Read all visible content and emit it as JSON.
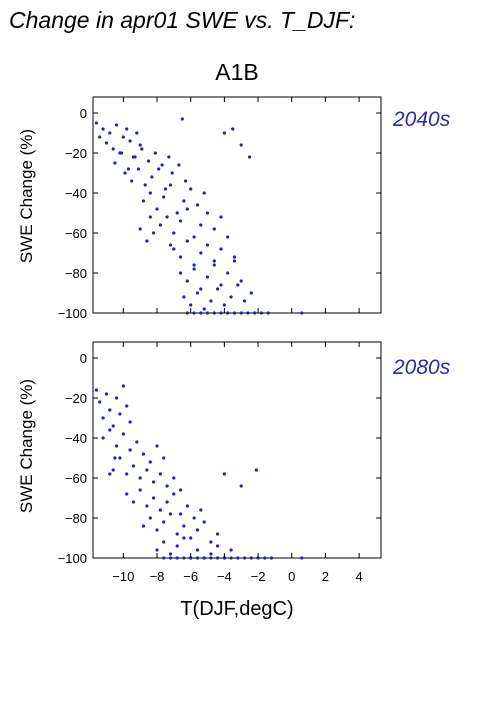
{
  "page_title": "Change in apr01 SWE vs. T_DJF:",
  "scenario": "A1B",
  "colors": {
    "points": "#2222bb",
    "period_label": "#2a2aa6",
    "axes": "#000000"
  },
  "chart_data": [
    {
      "type": "scatter",
      "panel_label": "2040s",
      "xlabel": "",
      "ylabel": "SWE Change (%)",
      "xlim": [
        -11.8,
        5.3
      ],
      "ylim": [
        -100,
        8
      ],
      "yticks": [
        0,
        -20,
        -40,
        -60,
        -80,
        -100
      ],
      "ytick_labels": [
        "0",
        "−20",
        "−40",
        "−60",
        "−80",
        "−100"
      ],
      "xticks": [
        -10,
        -8,
        -6,
        -4,
        -2,
        0,
        2,
        4
      ],
      "xtick_labels": [],
      "grid": false,
      "series": [
        {
          "x": [
            -11.6,
            -11.4,
            -11.2,
            -11.0,
            -10.8,
            -10.6,
            -10.4,
            -10.2,
            -10.0,
            -9.8,
            -9.6,
            -9.4,
            -9.2,
            -9.0,
            -10.5,
            -10.1,
            -9.7,
            -9.3,
            -8.9,
            -8.5,
            -8.1,
            -7.7,
            -7.3,
            -9.9,
            -9.5,
            -9.1,
            -8.7,
            -8.3,
            -7.9,
            -7.5,
            -7.1,
            -6.7,
            -6.3,
            -8.8,
            -8.4,
            -8.0,
            -7.6,
            -7.2,
            -6.8,
            -6.4,
            -6.0,
            -5.6,
            -5.2,
            -7.8,
            -7.4,
            -7.0,
            -6.6,
            -6.2,
            -5.8,
            -5.4,
            -5.0,
            -4.6,
            -4.2,
            -7.0,
            -6.6,
            -6.2,
            -5.8,
            -5.4,
            -5.0,
            -4.6,
            -4.2,
            -3.8,
            -3.4,
            -6.6,
            -6.2,
            -5.8,
            -5.4,
            -5.0,
            -4.6,
            -4.2,
            -3.8,
            -3.4,
            -3.0,
            -6.4,
            -6.0,
            -5.6,
            -5.2,
            -4.8,
            -4.4,
            -4.0,
            -3.6,
            -3.2,
            -2.8,
            -2.4,
            -6.2,
            -5.8,
            -5.4,
            -5.0,
            -4.6,
            -4.2,
            -3.8,
            -3.4,
            -3.0,
            -2.6,
            -2.2,
            -1.8,
            -1.4,
            0.6,
            -3.5,
            -3.0,
            -2.5,
            -4.0,
            -6.5,
            -8.6,
            -9.0,
            -8.2,
            -8.4,
            -7.2
          ],
          "y": [
            -5,
            -12,
            -8,
            -15,
            -10,
            -18,
            -6,
            -20,
            -12,
            -8,
            -14,
            -22,
            -10,
            -16,
            -25,
            -20,
            -28,
            -22,
            -18,
            -24,
            -20,
            -26,
            -22,
            -30,
            -34,
            -28,
            -36,
            -32,
            -28,
            -38,
            -30,
            -26,
            -34,
            -44,
            -40,
            -48,
            -42,
            -36,
            -50,
            -44,
            -38,
            -46,
            -40,
            -56,
            -52,
            -60,
            -54,
            -48,
            -62,
            -56,
            -50,
            -58,
            -52,
            -68,
            -72,
            -64,
            -76,
            -70,
            -66,
            -74,
            -68,
            -62,
            -72,
            -80,
            -84,
            -78,
            -88,
            -82,
            -76,
            -86,
            -80,
            -74,
            -84,
            -92,
            -96,
            -90,
            -98,
            -94,
            -88,
            -96,
            -92,
            -86,
            -94,
            -90,
            -100,
            -100,
            -100,
            -100,
            -100,
            -100,
            -100,
            -100,
            -100,
            -100,
            -100,
            -100,
            -100,
            -100,
            -8,
            -16,
            -22,
            -10,
            -3,
            -64,
            -58,
            -60,
            -52,
            -66
          ]
        }
      ]
    },
    {
      "type": "scatter",
      "panel_label": "2080s",
      "xlabel": "T(DJF,degC)",
      "ylabel": "SWE Change (%)",
      "xlim": [
        -11.8,
        5.3
      ],
      "ylim": [
        -100,
        8
      ],
      "yticks": [
        0,
        -20,
        -40,
        -60,
        -80,
        -100
      ],
      "ytick_labels": [
        "0",
        "−20",
        "−40",
        "−60",
        "−80",
        "−100"
      ],
      "xticks": [
        -10,
        -8,
        -6,
        -4,
        -2,
        0,
        2,
        4
      ],
      "xtick_labels": [
        "−10",
        "−8",
        "−6",
        "−4",
        "−2",
        "0",
        "2",
        "4"
      ],
      "grid": false,
      "series": [
        {
          "x": [
            -11.6,
            -11.4,
            -11.2,
            -11.0,
            -10.8,
            -10.6,
            -10.4,
            -10.2,
            -10.0,
            -9.8,
            -9.6,
            -11.2,
            -10.8,
            -10.4,
            -10.0,
            -9.6,
            -9.2,
            -8.8,
            -8.4,
            -8.0,
            -7.6,
            -10.6,
            -10.2,
            -9.8,
            -9.4,
            -9.0,
            -8.6,
            -8.2,
            -7.8,
            -7.4,
            -7.0,
            -6.6,
            -9.8,
            -9.4,
            -9.0,
            -8.6,
            -8.2,
            -7.8,
            -7.4,
            -7.0,
            -6.6,
            -6.2,
            -5.8,
            -5.4,
            -8.8,
            -8.4,
            -8.0,
            -7.6,
            -7.2,
            -6.8,
            -6.4,
            -6.0,
            -5.6,
            -5.2,
            -4.8,
            -4.4,
            -8.0,
            -7.6,
            -7.2,
            -6.8,
            -6.4,
            -6.0,
            -5.6,
            -5.2,
            -4.8,
            -4.4,
            -4.0,
            -3.6,
            -7.6,
            -7.2,
            -6.8,
            -6.4,
            -6.0,
            -5.6,
            -5.2,
            -4.8,
            -4.4,
            -4.0,
            -3.6,
            -3.2,
            -2.8,
            -2.4,
            -2.0,
            -1.6,
            -1.2,
            0.6,
            -3.0,
            -4.0,
            -10.5,
            -9.6,
            -10.8,
            -2.1
          ],
          "y": [
            -16,
            -22,
            -30,
            -18,
            -26,
            -34,
            -20,
            -28,
            -14,
            -24,
            -32,
            -40,
            -36,
            -44,
            -38,
            -46,
            -42,
            -48,
            -52,
            -44,
            -50,
            -56,
            -50,
            -58,
            -54,
            -60,
            -56,
            -62,
            -58,
            -64,
            -60,
            -66,
            -68,
            -72,
            -66,
            -74,
            -70,
            -76,
            -72,
            -68,
            -78,
            -74,
            -80,
            -76,
            -84,
            -80,
            -86,
            -82,
            -78,
            -88,
            -84,
            -90,
            -86,
            -82,
            -92,
            -88,
            -96,
            -92,
            -98,
            -94,
            -90,
            -100,
            -96,
            -100,
            -98,
            -94,
            -100,
            -96,
            -100,
            -100,
            -100,
            -100,
            -100,
            -100,
            -100,
            -100,
            -100,
            -100,
            -100,
            -100,
            -100,
            -100,
            -100,
            -100,
            -100,
            -100,
            -64,
            -58,
            -50,
            -46,
            -58,
            -56
          ]
        }
      ]
    }
  ]
}
